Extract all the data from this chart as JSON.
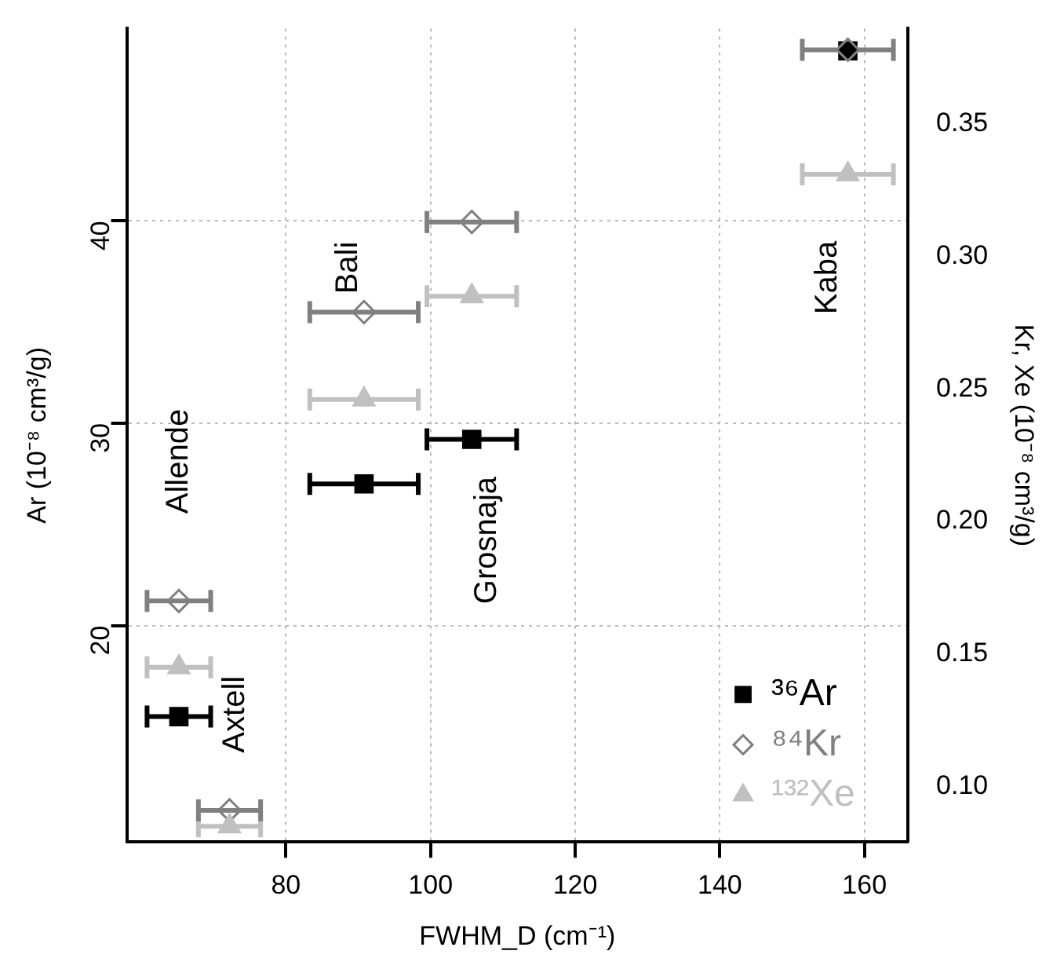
{
  "chart_data": {
    "type": "scatter",
    "xlabel": "FWHM_D (cm⁻¹)",
    "ylabel": "Ar (10⁻⁸ cm³/g)",
    "y2label": "Kr, Xe (10⁻⁸ cm³/g)",
    "x": [
      65.2,
      72.2,
      90.8,
      105.7,
      157.7
    ],
    "series": [
      {
        "name": "³⁶Ar",
        "color": "#000000",
        "marker": "square",
        "values": [
          15.5,
          null,
          27.0,
          29.2,
          48.4
        ],
        "xerrors": [
          4.4,
          null,
          7.5,
          6.2,
          null
        ]
      },
      {
        "name": "⁸⁴Kr",
        "color": "#808080",
        "marker": "diamond",
        "axis": "y2",
        "values": [
          0.17,
          0.091,
          0.279,
          0.313,
          0.378
        ],
        "xerrors": [
          4.4,
          4.3,
          7.5,
          6.2,
          6.3
        ]
      },
      {
        "name": "¹³²Xe",
        "color": "#c0c0c0",
        "marker": "triangle",
        "axis": "y2",
        "values": [
          0.145,
          0.085,
          0.246,
          0.285,
          0.331
        ],
        "xerrors": [
          4.4,
          4.3,
          7.5,
          6.2,
          6.3
        ]
      }
    ],
    "xlim": [
      58,
      166
    ],
    "xticks": [
      80,
      100,
      120,
      140,
      160
    ],
    "ylim": [
      9.3,
      49.5
    ],
    "yticks": [
      20,
      30,
      40
    ],
    "y2lim": [
      0.079,
      0.386
    ],
    "y2ticks": [
      {
        "value": 0.1,
        "label": "0.10"
      },
      0.15,
      {
        "value": 0.2,
        "label": "0.20"
      },
      0.25,
      {
        "value": 0.3,
        "label": "0.30"
      },
      0.35
    ],
    "annotations": [
      "Allende",
      "Axtell",
      "Bali",
      "Grosnaja",
      "Kaba"
    ],
    "grid": true,
    "legend": "bottom right"
  }
}
